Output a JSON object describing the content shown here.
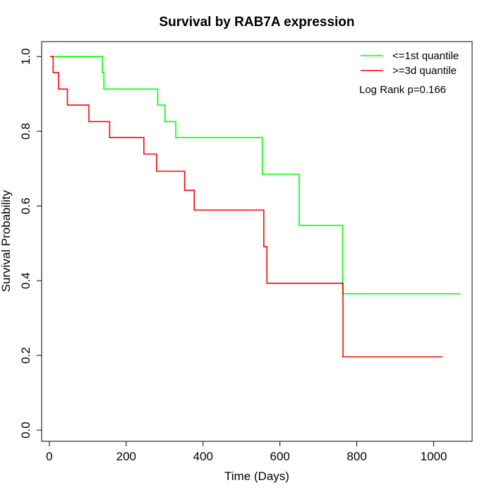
{
  "chart_data": {
    "type": "line",
    "title": "Survival by RAB7A expression",
    "xlabel": "Time (Days)",
    "ylabel": "Survival Probability",
    "xlim": [
      -20,
      1100
    ],
    "ylim": [
      -0.03,
      1.04
    ],
    "xticks": [
      0,
      200,
      400,
      600,
      800,
      1000
    ],
    "yticks": [
      0.0,
      0.2,
      0.4,
      0.6,
      0.8,
      1.0
    ],
    "xtick_labels": [
      "0",
      "200",
      "400",
      "600",
      "800",
      "1000"
    ],
    "ytick_labels": [
      "0.0",
      "0.2",
      "0.4",
      "0.6",
      "0.8",
      "1.0"
    ],
    "grid": false,
    "legend_position": "top-right",
    "annotation": "Log Rank p=0.166",
    "series": [
      {
        "name": "<=1st quantile",
        "color": "#00ff00",
        "step": true,
        "points": [
          [
            5,
            1.0
          ],
          [
            138,
            1.0
          ],
          [
            138,
            0.957
          ],
          [
            142,
            0.957
          ],
          [
            142,
            0.913
          ],
          [
            282,
            0.913
          ],
          [
            282,
            0.87
          ],
          [
            301,
            0.87
          ],
          [
            301,
            0.826
          ],
          [
            329,
            0.826
          ],
          [
            329,
            0.783
          ],
          [
            554,
            0.783
          ],
          [
            554,
            0.685
          ],
          [
            650,
            0.685
          ],
          [
            650,
            0.548
          ],
          [
            763,
            0.548
          ],
          [
            763,
            0.365
          ],
          [
            1070,
            0.365
          ]
        ]
      },
      {
        "name": ">=3d quantile",
        "color": "#ff0000",
        "step": true,
        "points": [
          [
            2,
            1.0
          ],
          [
            10,
            1.0
          ],
          [
            10,
            0.957
          ],
          [
            24,
            0.957
          ],
          [
            24,
            0.913
          ],
          [
            47,
            0.913
          ],
          [
            47,
            0.87
          ],
          [
            103,
            0.87
          ],
          [
            103,
            0.826
          ],
          [
            157,
            0.826
          ],
          [
            157,
            0.783
          ],
          [
            246,
            0.783
          ],
          [
            246,
            0.739
          ],
          [
            279,
            0.739
          ],
          [
            279,
            0.693
          ],
          [
            352,
            0.693
          ],
          [
            352,
            0.642
          ],
          [
            377,
            0.642
          ],
          [
            377,
            0.589
          ],
          [
            558,
            0.589
          ],
          [
            558,
            0.491
          ],
          [
            566,
            0.491
          ],
          [
            566,
            0.393
          ],
          [
            764,
            0.393
          ],
          [
            764,
            0.196
          ],
          [
            1023,
            0.196
          ]
        ]
      }
    ]
  }
}
